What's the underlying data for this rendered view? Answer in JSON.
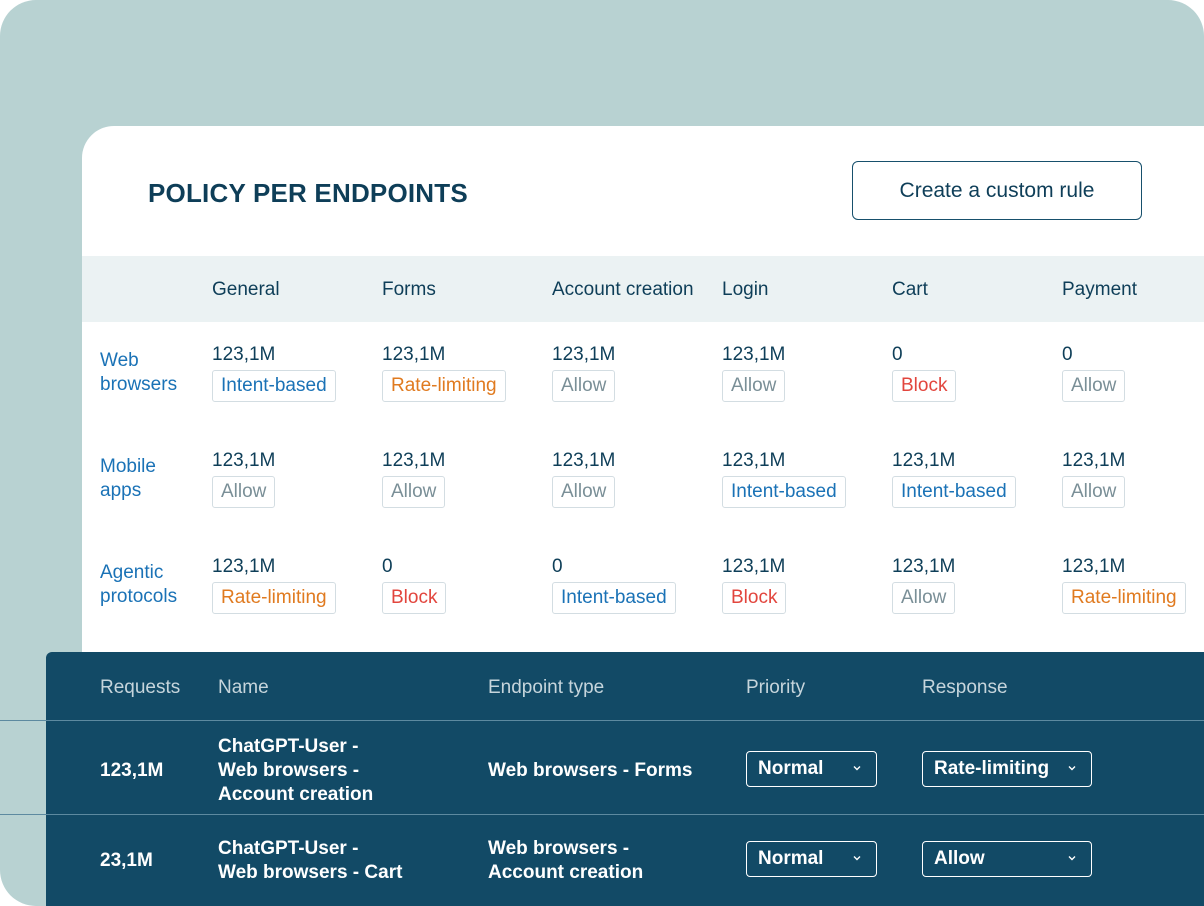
{
  "title": "POLICY PER ENDPOINTS",
  "create_button": "Create a custom rule",
  "columns": [
    "General",
    "Forms",
    "Account creation",
    "Login",
    "Cart",
    "Payment"
  ],
  "rows": [
    {
      "label": [
        "Web",
        "browsers"
      ],
      "cells": [
        {
          "count": "123,1M",
          "policy": "Intent-based",
          "kind": "intent"
        },
        {
          "count": "123,1M",
          "policy": "Rate-limiting",
          "kind": "rate"
        },
        {
          "count": "123,1M",
          "policy": "Allow",
          "kind": "allow"
        },
        {
          "count": "123,1M",
          "policy": "Allow",
          "kind": "allow"
        },
        {
          "count": "0",
          "policy": "Block",
          "kind": "block"
        },
        {
          "count": "0",
          "policy": "Allow",
          "kind": "allow"
        }
      ]
    },
    {
      "label": [
        "Mobile",
        "apps"
      ],
      "cells": [
        {
          "count": "123,1M",
          "policy": "Allow",
          "kind": "allow"
        },
        {
          "count": "123,1M",
          "policy": "Allow",
          "kind": "allow"
        },
        {
          "count": "123,1M",
          "policy": "Allow",
          "kind": "allow"
        },
        {
          "count": "123,1M",
          "policy": "Intent-based",
          "kind": "intent"
        },
        {
          "count": "123,1M",
          "policy": "Intent-based",
          "kind": "intent"
        },
        {
          "count": "123,1M",
          "policy": "Allow",
          "kind": "allow"
        }
      ]
    },
    {
      "label": [
        "Agentic",
        "protocols"
      ],
      "cells": [
        {
          "count": "123,1M",
          "policy": "Rate-limiting",
          "kind": "rate"
        },
        {
          "count": "0",
          "policy": "Block",
          "kind": "block"
        },
        {
          "count": "0",
          "policy": "Intent-based",
          "kind": "intent"
        },
        {
          "count": "123,1M",
          "policy": "Block",
          "kind": "block"
        },
        {
          "count": "123,1M",
          "policy": "Allow",
          "kind": "allow"
        },
        {
          "count": "123,1M",
          "policy": "Rate-limiting",
          "kind": "rate"
        }
      ]
    }
  ],
  "requests_table": {
    "headers": {
      "requests": "Requests",
      "name": "Name",
      "endpoint_type": "Endpoint type",
      "priority": "Priority",
      "response": "Response"
    },
    "rows": [
      {
        "requests": "123,1M",
        "name": [
          "ChatGPT-User -",
          "Web browsers -",
          "Account creation"
        ],
        "endpoint_type": [
          "Web browsers - Forms"
        ],
        "priority": "Normal",
        "response": "Rate-limiting"
      },
      {
        "requests": "23,1M",
        "name": [
          "ChatGPT-User -",
          "Web browsers - Cart"
        ],
        "endpoint_type": [
          "Web browsers -",
          "Account creation"
        ],
        "priority": "Normal",
        "response": "Allow"
      }
    ]
  },
  "colors": {
    "background": "#b8d2d2",
    "navy": "#124a66",
    "title": "#0e3e58",
    "intent": "#1a72b6",
    "rate": "#e07a1f",
    "block": "#e2453d",
    "allow": "#7a8f97"
  },
  "icons": {
    "select_chevron": "chevron-down-icon"
  }
}
